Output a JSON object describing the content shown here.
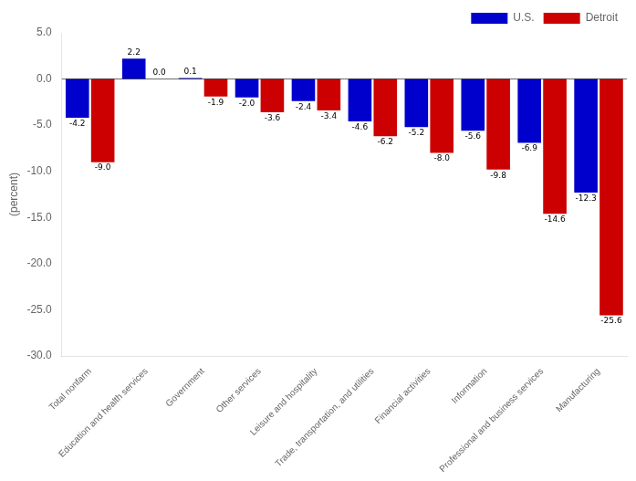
{
  "chart_data": {
    "type": "bar",
    "categories": [
      "Total nonfarm",
      "Education and health services",
      "Government",
      "Other services",
      "Leisure and hospitality",
      "Trade, transportation, and utilities",
      "Financial activities",
      "Information",
      "Professional and business services",
      "Manufacturing"
    ],
    "series": [
      {
        "name": "U.S.",
        "color": "#0000CC",
        "values": [
          -4.2,
          2.2,
          0.1,
          -2.0,
          -2.4,
          -4.6,
          -5.2,
          -5.6,
          -6.9,
          -12.3
        ],
        "value_labels": [
          "-4.2",
          "2.2",
          "0.1",
          "-2.0",
          "-2.4",
          "-4.6",
          "-5.2",
          "-5.6",
          "-6.9",
          "-12.3"
        ]
      },
      {
        "name": "Detroit",
        "color": "#CC0000",
        "values": [
          -9.0,
          0.0,
          -1.9,
          -3.6,
          -3.4,
          -6.2,
          -8.0,
          -9.8,
          -14.6,
          -25.6
        ],
        "value_labels": [
          "-9.0",
          "0.0",
          "-1.9",
          "-3.6",
          "-3.4",
          "-6.2",
          "-8.0",
          "-9.8",
          "-14.6",
          "-25.6"
        ]
      }
    ],
    "ylabel": "(percent)",
    "ylim": [
      -30.0,
      5.0
    ],
    "yticks": [
      {
        "value": 5,
        "label": "5.0"
      },
      {
        "value": 0,
        "label": "0.0"
      },
      {
        "value": -5,
        "label": "-5.0"
      },
      {
        "value": -10,
        "label": "-10.0"
      },
      {
        "value": -15,
        "label": "-15.0"
      },
      {
        "value": -20,
        "label": "-20.0"
      },
      {
        "value": -25,
        "label": "-25.0"
      },
      {
        "value": -30,
        "label": "-30.0"
      }
    ],
    "grid": false,
    "legend": "upper right",
    "data_labels": true
  }
}
